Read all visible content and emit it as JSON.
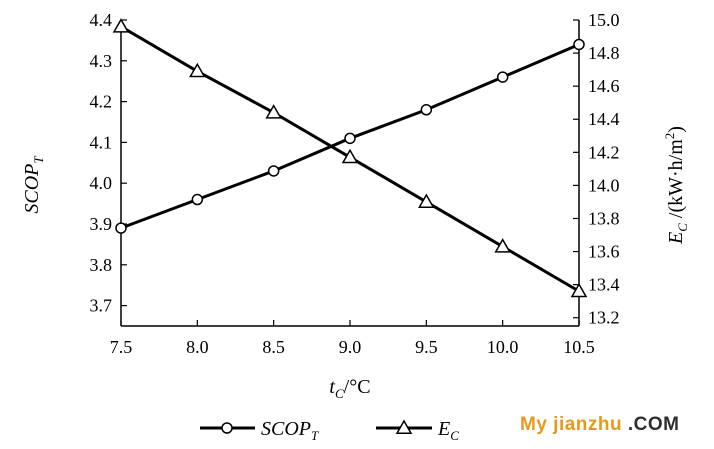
{
  "chart_data": {
    "type": "line",
    "x": [
      7.5,
      8.0,
      8.5,
      9.0,
      9.5,
      10.0,
      10.5
    ],
    "x_ticks": [
      "7.5",
      "8.0",
      "8.5",
      "9.0",
      "9.5",
      "10.0",
      "10.5"
    ],
    "xlim": [
      7.5,
      10.5
    ],
    "xlabel": {
      "main": "t",
      "sub": "C",
      "unit": "/°C"
    },
    "y_left": {
      "label_main": "SCOP",
      "label_sub": "T",
      "ylim": [
        3.65,
        4.4
      ],
      "ticks": [
        "3.7",
        "3.8",
        "3.9",
        "4.0",
        "4.1",
        "4.2",
        "4.3",
        "4.4"
      ]
    },
    "y_right": {
      "label_main": "E",
      "label_sub": "C",
      "label_unit_pre": "/(kW·h/m",
      "label_unit_sup": "2",
      "label_unit_post": ")",
      "ylim": [
        13.15,
        15.0
      ],
      "ticks": [
        "13.2",
        "13.4",
        "13.6",
        "13.8",
        "14.0",
        "14.2",
        "14.4",
        "14.6",
        "14.8",
        "15.0"
      ]
    },
    "series": [
      {
        "name": "SCOP",
        "name_sub": "T",
        "axis": "left",
        "marker": "circle",
        "values": [
          3.89,
          3.96,
          4.03,
          4.11,
          4.18,
          4.26,
          4.34
        ]
      },
      {
        "name": "E",
        "name_sub": "C",
        "axis": "right",
        "marker": "triangle",
        "values": [
          14.96,
          14.69,
          14.44,
          14.17,
          13.9,
          13.63,
          13.36
        ]
      }
    ],
    "grid": false,
    "legend_position": "bottom-center"
  },
  "watermark": {
    "part1": "My jianzhu",
    "part2": " .COM"
  }
}
